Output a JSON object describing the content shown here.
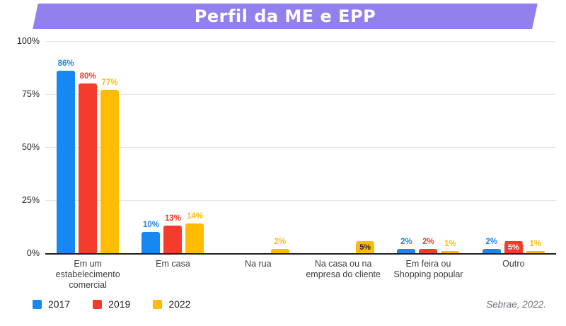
{
  "title": "Perfil da ME e EPP",
  "source": "Sebrae, 2022.",
  "colors": {
    "banner": "#9181ec",
    "blue_2017": "#1787f2",
    "red_2019": "#f53b2b",
    "yellow_2022": "#ffbc03",
    "gridline": "#e4e4e4",
    "axis": "#1f1f1f",
    "tick_text": "#202124",
    "category_text": "#3c4043",
    "source_text": "#70757a"
  },
  "legend": [
    {
      "label": "2017",
      "color": "#1787f2"
    },
    {
      "label": "2019",
      "color": "#f53b2b"
    },
    {
      "label": "2022",
      "color": "#ffbc03"
    }
  ],
  "chart_data": {
    "type": "bar",
    "title": "Perfil da ME e EPP",
    "categories": [
      "Em um estabelecimento comercial",
      "Em casa",
      "Na rua",
      "Na casa ou na empresa do cliente",
      "Em feira ou Shopping popular",
      "Outro"
    ],
    "series": [
      {
        "name": "2017",
        "color": "#1787f2",
        "values": [
          86,
          10,
          0,
          0,
          2,
          2
        ]
      },
      {
        "name": "2019",
        "color": "#f53b2b",
        "values": [
          80,
          13,
          0,
          0,
          2,
          5
        ]
      },
      {
        "name": "2022",
        "color": "#ffbc03",
        "values": [
          77,
          14,
          2,
          5,
          1,
          1
        ]
      }
    ],
    "value_label_format": "percent",
    "chip_labels": [
      {
        "series_index": 1,
        "category_index": 5,
        "text_color": "#ffffff"
      },
      {
        "series_index": 2,
        "category_index": 3,
        "text_color": "#202124"
      }
    ],
    "yticks": [
      {
        "label": "100%",
        "value": 100
      },
      {
        "label": "75%",
        "value": 75
      },
      {
        "label": "50%",
        "value": 50
      },
      {
        "label": "25%",
        "value": 25
      },
      {
        "label": "0%",
        "value": 0
      }
    ],
    "ylim": [
      0,
      100
    ],
    "grid": true,
    "legend_position": "bottom-left"
  }
}
